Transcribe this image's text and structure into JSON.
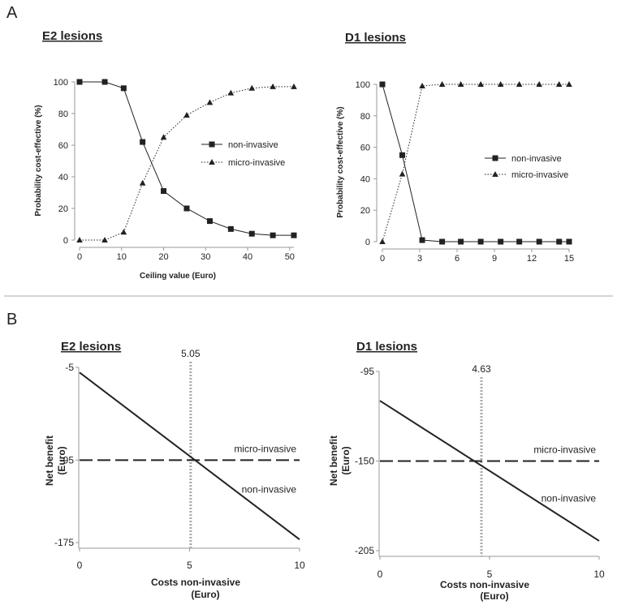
{
  "panel_labels": [
    "A",
    "B"
  ],
  "colors": {
    "line": "#222222",
    "axis": "#9a9a9a",
    "divider": "#aaaaaa",
    "threshold": "#aaaaaa"
  },
  "chart_data": [
    {
      "id": "A-E2",
      "type": "line",
      "title": "E2 lesions",
      "xlabel": "Ceiling value (Euro)",
      "ylabel": "Probability cost-effective (%)",
      "xlim": [
        0,
        51
      ],
      "ylim": [
        0,
        100
      ],
      "xticks": [
        0,
        10,
        20,
        30,
        40,
        50
      ],
      "yticks": [
        0,
        20,
        40,
        60,
        80,
        100
      ],
      "legend_position": "right",
      "series": [
        {
          "name": "non-invasive",
          "marker": "square",
          "dash": "solid",
          "x": [
            0,
            6,
            10.5,
            15,
            20,
            25.5,
            31,
            36,
            41,
            46,
            51
          ],
          "y": [
            100,
            100,
            96,
            62,
            31,
            20,
            12,
            7,
            4,
            3,
            3
          ]
        },
        {
          "name": "micro-invasive",
          "marker": "triangle",
          "dash": "dotted",
          "x": [
            0,
            6,
            10.5,
            15,
            20,
            25.5,
            31,
            36,
            41,
            46,
            51
          ],
          "y": [
            0,
            0,
            5,
            36,
            65,
            79,
            87,
            93,
            96,
            97,
            97
          ]
        }
      ]
    },
    {
      "id": "A-D1",
      "type": "line",
      "title": "D1 lesions",
      "xlabel": "",
      "ylabel": "Probability cost-effective (%)",
      "xlim": [
        0,
        15
      ],
      "ylim": [
        0,
        100
      ],
      "xticks": [
        0,
        3,
        6,
        9,
        12,
        15
      ],
      "yticks": [
        0,
        20,
        40,
        60,
        80,
        100
      ],
      "legend_position": "right",
      "series": [
        {
          "name": "non-invasive",
          "marker": "square",
          "dash": "solid",
          "x": [
            0,
            1.6,
            3.2,
            4.8,
            6.3,
            7.9,
            9.5,
            11,
            12.6,
            14.2,
            15
          ],
          "y": [
            100,
            55,
            1,
            0,
            0,
            0,
            0,
            0,
            0,
            0,
            0
          ]
        },
        {
          "name": "micro-invasive",
          "marker": "triangle",
          "dash": "dotted",
          "x": [
            0,
            1.6,
            3.2,
            4.8,
            6.3,
            7.9,
            9.5,
            11,
            12.6,
            14.2,
            15
          ],
          "y": [
            0,
            43,
            99,
            100,
            100,
            100,
            100,
            100,
            100,
            100,
            100
          ]
        }
      ]
    },
    {
      "id": "B-E2",
      "type": "line",
      "title": "E2 lesions",
      "xlabel": "Costs non-invasive",
      "xlabel2": "(Euro)",
      "ylabel": "Net benefit",
      "ylabel2": "(Euro)",
      "xlim": [
        0,
        10
      ],
      "ylim": [
        -175,
        -5
      ],
      "xticks": [
        0,
        5,
        10
      ],
      "yticks": [
        -5,
        -95,
        -175
      ],
      "threshold": 5.05,
      "threshold_label": "5.05",
      "series": [
        {
          "name": "micro-invasive",
          "dash": "dashed",
          "x": [
            0,
            10
          ],
          "y": [
            -95,
            -95
          ]
        },
        {
          "name": "non-invasive",
          "dash": "solid",
          "x": [
            0,
            10
          ],
          "y": [
            -10,
            -172
          ]
        }
      ]
    },
    {
      "id": "B-D1",
      "type": "line",
      "title": "D1 lesions",
      "xlabel": "Costs non-invasive",
      "xlabel2": "(Euro)",
      "ylabel": "Net benefit",
      "ylabel2": "(Euro)",
      "xlim": [
        0,
        10
      ],
      "ylim": [
        -205,
        -95
      ],
      "xticks": [
        0,
        5,
        10
      ],
      "yticks": [
        -95,
        -150,
        -205
      ],
      "threshold": 4.63,
      "threshold_label": "4.63",
      "series": [
        {
          "name": "micro-invasive",
          "dash": "dashed",
          "x": [
            0,
            10
          ],
          "y": [
            -150,
            -150
          ]
        },
        {
          "name": "non-invasive",
          "dash": "solid",
          "x": [
            0,
            10
          ],
          "y": [
            -113,
            -199
          ]
        }
      ]
    }
  ]
}
